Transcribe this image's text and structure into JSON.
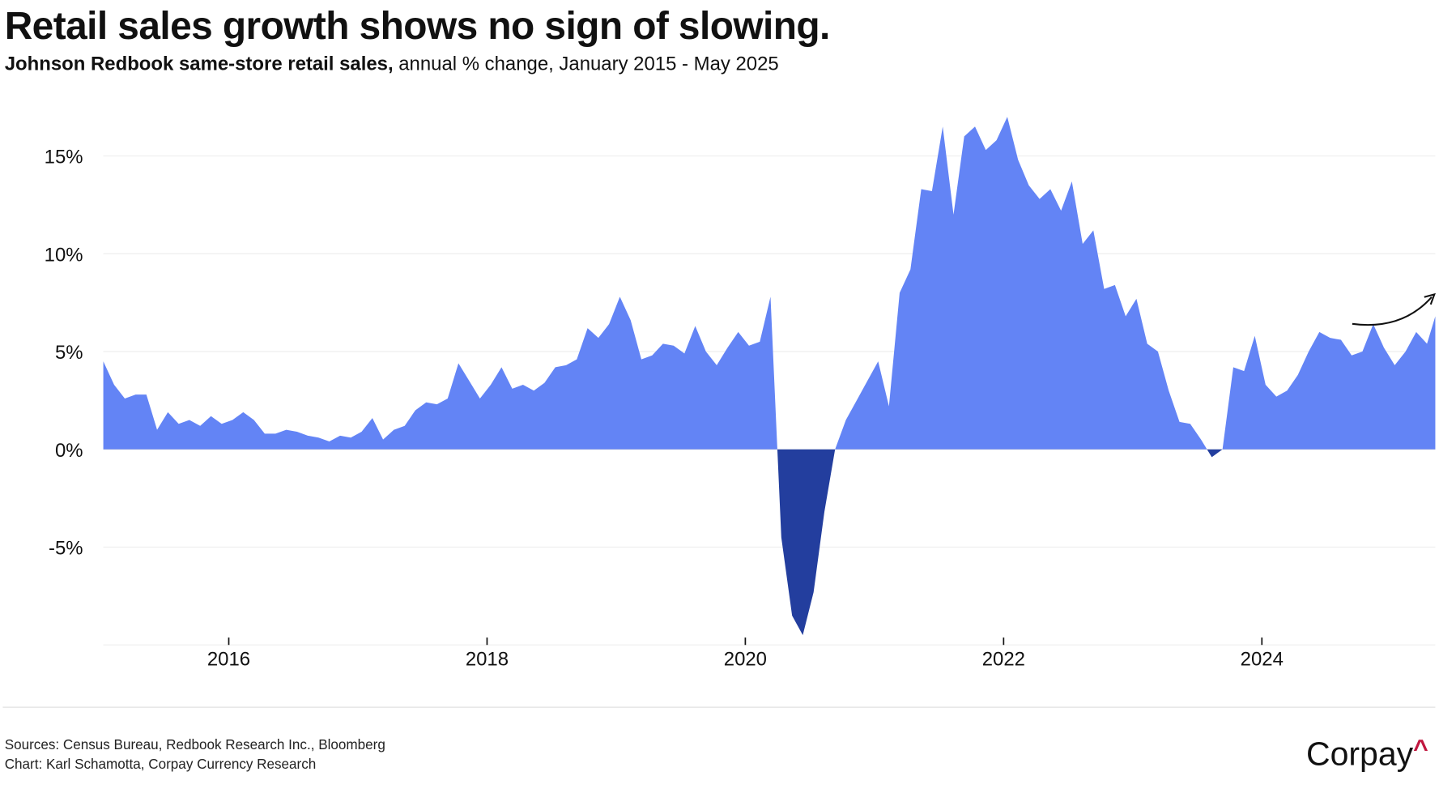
{
  "chart_data": {
    "type": "area",
    "title": "Retail sales growth shows no sign of slowing.",
    "subtitle_bold": "Johnson Redbook same-store retail sales,",
    "subtitle_rest": " annual % change, January 2015 - May 2025",
    "x_start": "2015-01",
    "x_end": "2025-05",
    "frequency": "monthly",
    "x_ticks": [
      "2016",
      "2018",
      "2020",
      "2022",
      "2024"
    ],
    "y_ticks": [
      "15%",
      "10%",
      "5%",
      "0%",
      "-5%"
    ],
    "ylim": [
      -10,
      17.5
    ],
    "grid": true,
    "colors": {
      "positive": "#6384f5",
      "negative": "#233e9e",
      "logo_accent": "#c0173f"
    },
    "annotation": "upward-arrow",
    "values": [
      4.5,
      3.3,
      2.6,
      2.8,
      2.8,
      1.0,
      1.9,
      1.3,
      1.5,
      1.2,
      1.7,
      1.3,
      1.5,
      1.9,
      1.5,
      0.8,
      0.8,
      1.0,
      0.9,
      0.7,
      0.6,
      0.4,
      0.7,
      0.6,
      0.9,
      1.6,
      0.5,
      1.0,
      1.2,
      2.0,
      2.4,
      2.3,
      2.6,
      4.4,
      3.5,
      2.6,
      3.3,
      4.2,
      3.1,
      3.3,
      3.0,
      3.4,
      4.2,
      4.3,
      4.6,
      6.2,
      5.7,
      6.4,
      7.8,
      6.6,
      4.6,
      4.8,
      5.4,
      5.3,
      4.9,
      6.3,
      5.0,
      4.3,
      5.2,
      6.0,
      5.3,
      5.5,
      7.8,
      -4.5,
      -8.5,
      -9.5,
      -7.3,
      -3.2,
      0.0,
      1.5,
      2.5,
      3.5,
      4.5,
      2.2,
      8.0,
      9.2,
      13.3,
      13.2,
      16.5,
      12.0,
      16.0,
      16.5,
      15.3,
      15.8,
      17.0,
      14.8,
      13.5,
      12.8,
      13.3,
      12.2,
      13.7,
      10.5,
      11.2,
      8.2,
      8.4,
      6.8,
      7.7,
      5.4,
      5.0,
      3.0,
      1.4,
      1.3,
      0.5,
      -0.4,
      0.0,
      4.2,
      4.0,
      5.8,
      3.3,
      2.7,
      3.0,
      3.8,
      5.0,
      6.0,
      5.7,
      5.6,
      4.8,
      5.0,
      6.4,
      5.2,
      4.3,
      5.0,
      6.0,
      5.4,
      6.8
    ]
  },
  "footer": {
    "sources": "Sources: Census Bureau, Redbook Research Inc., Bloomberg",
    "credit": "Chart: Karl Schamotta, Corpay Currency Research",
    "logo": "Corpay"
  }
}
